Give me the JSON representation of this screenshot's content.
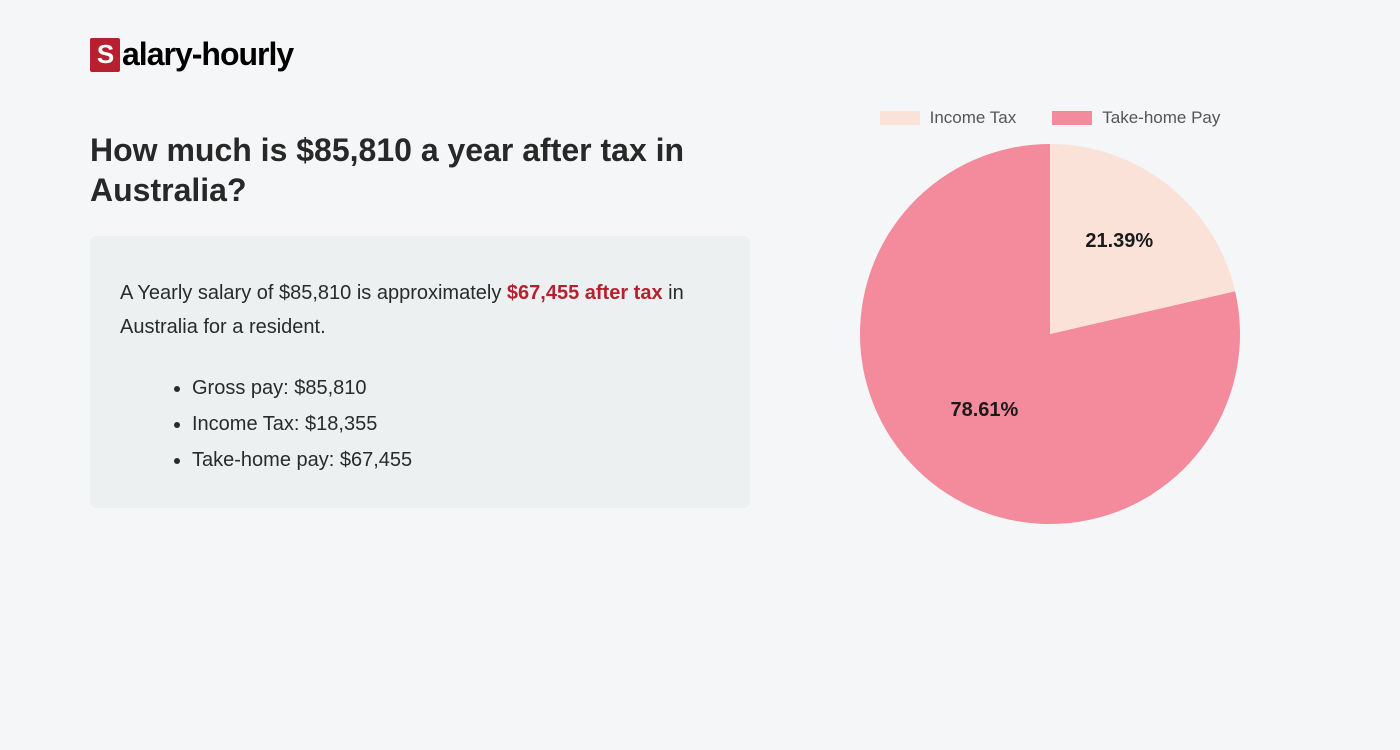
{
  "logo": {
    "text_rest": "alary-hourly"
  },
  "heading": "How much is $85,810 a year after tax in Australia?",
  "summary": {
    "prefix": "A Yearly salary of $85,810 is approximately ",
    "highlight": "$67,455 after tax",
    "suffix": " in Australia for a resident."
  },
  "bullets": {
    "gross": "Gross pay: $85,810",
    "tax": "Income Tax: $18,355",
    "take_home": "Take-home pay: $67,455"
  },
  "chart": {
    "type": "pie",
    "legend": {
      "income_tax": "Income Tax",
      "take_home": "Take-home Pay"
    },
    "slices": {
      "income_tax": {
        "percent": 21.39,
        "label": "21.39%",
        "color": "#fae2d9"
      },
      "take_home": {
        "percent": 78.61,
        "label": "78.61%",
        "color": "#f38b9c"
      }
    },
    "radius": 190,
    "label_fontsize": 20,
    "label_color": "#1a1a1a",
    "legend_fontsize": 17,
    "legend_color": "#555555",
    "background": "#f5f6f8"
  },
  "colors": {
    "page_bg": "#f5f6f8",
    "box_bg": "#ecf0f1",
    "heading": "#282828",
    "body_text": "#2a2a2a",
    "brand_red": "#b8202f"
  }
}
